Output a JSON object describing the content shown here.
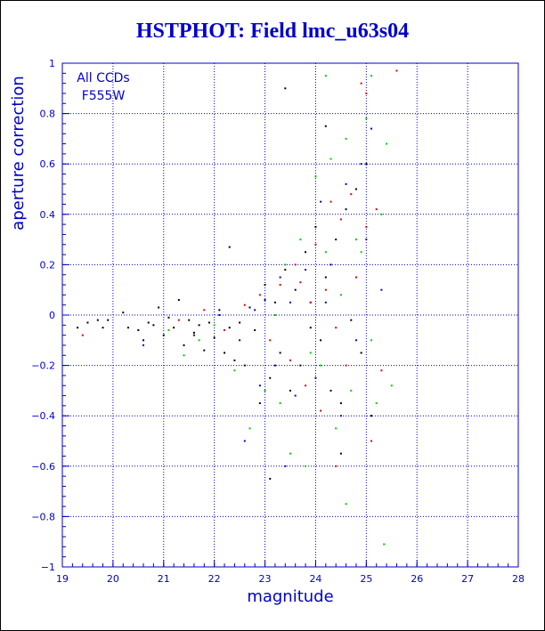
{
  "chart_data": {
    "type": "scatter",
    "title": "HSTPHOT: Field lmc_u63s04",
    "xlabel": "magnitude",
    "ylabel": "aperture correction",
    "xlim": [
      19,
      28
    ],
    "ylim": [
      -1,
      1
    ],
    "xticks": [
      "19",
      "20",
      "21",
      "22",
      "23",
      "24",
      "25",
      "26",
      "27",
      "28"
    ],
    "yticks": [
      "−1",
      "−0.8",
      "−0.6",
      "−0.4",
      "−0.2",
      "0",
      "0.2",
      "0.4",
      "0.6",
      "0.8",
      "1"
    ],
    "grid": true,
    "annotations": [
      "All CCDs",
      "F555W"
    ],
    "colors": {
      "text": "#0000cc",
      "axes": "#0000cc",
      "grid": "#0000cc"
    },
    "series": [
      {
        "color": "#000000",
        "points": [
          [
            19.3,
            -0.05
          ],
          [
            19.5,
            -0.03
          ],
          [
            19.7,
            -0.02
          ],
          [
            19.8,
            -0.05
          ],
          [
            19.9,
            -0.02
          ],
          [
            20.2,
            0.01
          ],
          [
            20.3,
            -0.05
          ],
          [
            20.5,
            -0.06
          ],
          [
            20.6,
            -0.1
          ],
          [
            20.7,
            -0.03
          ],
          [
            20.8,
            -0.04
          ],
          [
            20.9,
            0.03
          ],
          [
            21.0,
            -0.08
          ],
          [
            21.1,
            -0.01
          ],
          [
            21.2,
            -0.05
          ],
          [
            21.3,
            0.06
          ],
          [
            21.4,
            -0.12
          ],
          [
            21.5,
            -0.02
          ],
          [
            21.6,
            -0.07
          ],
          [
            21.7,
            -0.04
          ],
          [
            21.8,
            -0.14
          ],
          [
            21.9,
            -0.03
          ],
          [
            22.0,
            -0.09
          ],
          [
            22.1,
            0.02
          ],
          [
            22.2,
            -0.15
          ],
          [
            22.3,
            -0.05
          ],
          [
            22.4,
            -0.18
          ],
          [
            22.5,
            -0.03
          ],
          [
            22.6,
            -0.2
          ],
          [
            22.7,
            0.03
          ],
          [
            22.8,
            -0.06
          ],
          [
            22.9,
            -0.35
          ],
          [
            23.0,
            0.12
          ],
          [
            23.1,
            -0.25
          ],
          [
            23.2,
            0.05
          ],
          [
            23.3,
            -0.15
          ],
          [
            23.4,
            0.18
          ],
          [
            23.5,
            -0.3
          ],
          [
            23.6,
            0.1
          ],
          [
            23.7,
            -0.2
          ],
          [
            23.8,
            0.25
          ],
          [
            23.9,
            -0.05
          ],
          [
            24.0,
            0.35
          ],
          [
            24.1,
            -0.1
          ],
          [
            24.2,
            0.15
          ],
          [
            24.3,
            -0.3
          ],
          [
            24.4,
            0.3
          ],
          [
            24.5,
            -0.35
          ],
          [
            24.6,
            0.42
          ],
          [
            24.7,
            -0.02
          ],
          [
            24.8,
            0.5
          ],
          [
            24.9,
            -0.15
          ],
          [
            25.0,
            0.6
          ],
          [
            25.1,
            -0.4
          ],
          [
            23.4,
            0.9
          ],
          [
            24.2,
            0.75
          ],
          [
            22.3,
            0.27
          ],
          [
            23.1,
            -0.65
          ],
          [
            24.5,
            -0.55
          ],
          [
            23.9,
            0.05
          ]
        ]
      },
      {
        "color": "#dd0000",
        "points": [
          [
            19.4,
            -0.08
          ],
          [
            21.3,
            -0.02
          ],
          [
            21.8,
            0.02
          ],
          [
            22.2,
            -0.06
          ],
          [
            22.6,
            0.04
          ],
          [
            22.9,
            0.08
          ],
          [
            23.1,
            -0.1
          ],
          [
            23.3,
            0.12
          ],
          [
            23.5,
            -0.18
          ],
          [
            23.6,
            0.2
          ],
          [
            23.8,
            -0.28
          ],
          [
            23.9,
            0.05
          ],
          [
            24.0,
            0.28
          ],
          [
            24.1,
            -0.38
          ],
          [
            24.2,
            0.1
          ],
          [
            24.3,
            0.45
          ],
          [
            24.4,
            -0.05
          ],
          [
            24.5,
            0.38
          ],
          [
            24.6,
            -0.2
          ],
          [
            24.7,
            0.48
          ],
          [
            24.8,
            0.15
          ],
          [
            24.9,
            0.92
          ],
          [
            25.0,
            0.35
          ],
          [
            25.1,
            -0.5
          ],
          [
            25.2,
            0.42
          ],
          [
            25.3,
            -0.22
          ],
          [
            25.6,
            0.97
          ],
          [
            24.4,
            -0.6
          ],
          [
            25.0,
            0.88
          ],
          [
            23.7,
            0.13
          ]
        ]
      },
      {
        "color": "#00cc00",
        "points": [
          [
            21.1,
            -0.06
          ],
          [
            21.4,
            -0.16
          ],
          [
            21.7,
            -0.1
          ],
          [
            22.0,
            -0.04
          ],
          [
            22.4,
            -0.22
          ],
          [
            22.7,
            -0.45
          ],
          [
            23.0,
            -0.3
          ],
          [
            23.2,
            0.0
          ],
          [
            23.3,
            -0.35
          ],
          [
            23.4,
            0.2
          ],
          [
            23.5,
            -0.55
          ],
          [
            23.7,
            0.3
          ],
          [
            23.9,
            -0.15
          ],
          [
            24.0,
            0.55
          ],
          [
            24.1,
            -0.2
          ],
          [
            24.2,
            0.25
          ],
          [
            24.3,
            0.62
          ],
          [
            24.4,
            -0.45
          ],
          [
            24.5,
            0.08
          ],
          [
            24.6,
            0.7
          ],
          [
            24.7,
            -0.3
          ],
          [
            24.8,
            0.3
          ],
          [
            24.9,
            0.25
          ],
          [
            25.0,
            0.78
          ],
          [
            25.1,
            -0.1
          ],
          [
            25.3,
            0.4
          ],
          [
            25.4,
            0.68
          ],
          [
            25.5,
            -0.28
          ],
          [
            25.1,
            0.95
          ],
          [
            25.35,
            -0.91
          ],
          [
            23.8,
            -0.6
          ],
          [
            24.6,
            -0.75
          ],
          [
            25.2,
            -0.35
          ],
          [
            24.2,
            0.95
          ]
        ]
      },
      {
        "color": "#0000cc",
        "points": [
          [
            20.6,
            -0.12
          ],
          [
            21.6,
            -0.08
          ],
          [
            22.1,
            0.0
          ],
          [
            22.5,
            -0.1
          ],
          [
            22.8,
            0.02
          ],
          [
            22.9,
            -0.28
          ],
          [
            23.0,
            0.06
          ],
          [
            23.2,
            -0.2
          ],
          [
            23.3,
            0.15
          ],
          [
            23.5,
            0.05
          ],
          [
            23.6,
            -0.32
          ],
          [
            23.8,
            0.18
          ],
          [
            24.0,
            -0.25
          ],
          [
            24.1,
            0.45
          ],
          [
            24.3,
            0.2
          ],
          [
            24.5,
            -0.4
          ],
          [
            24.6,
            0.52
          ],
          [
            24.8,
            -0.1
          ],
          [
            25.0,
            0.3
          ],
          [
            25.1,
            0.74
          ],
          [
            25.3,
            0.1
          ],
          [
            23.4,
            -0.6
          ],
          [
            22.6,
            -0.5
          ],
          [
            24.9,
            0.6
          ],
          [
            24.2,
            0.05
          ]
        ]
      }
    ]
  }
}
